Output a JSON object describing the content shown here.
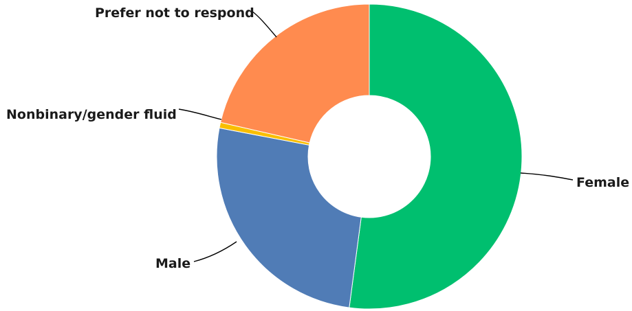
{
  "chart_data": {
    "type": "pie",
    "variant": "donut",
    "title": "",
    "slices": [
      {
        "label": "Female",
        "value": 52.1,
        "color": "#00bf6f"
      },
      {
        "label": "Male",
        "value": 25.9,
        "color": "#507cb6"
      },
      {
        "label": "Nonbinary/gender fluid",
        "value": 0.6,
        "color": "#f9be00"
      },
      {
        "label": "Prefer not to respond",
        "value": 21.4,
        "color": "#ff8b4f"
      }
    ],
    "legend": "none",
    "labels": "outside with leader lines"
  }
}
